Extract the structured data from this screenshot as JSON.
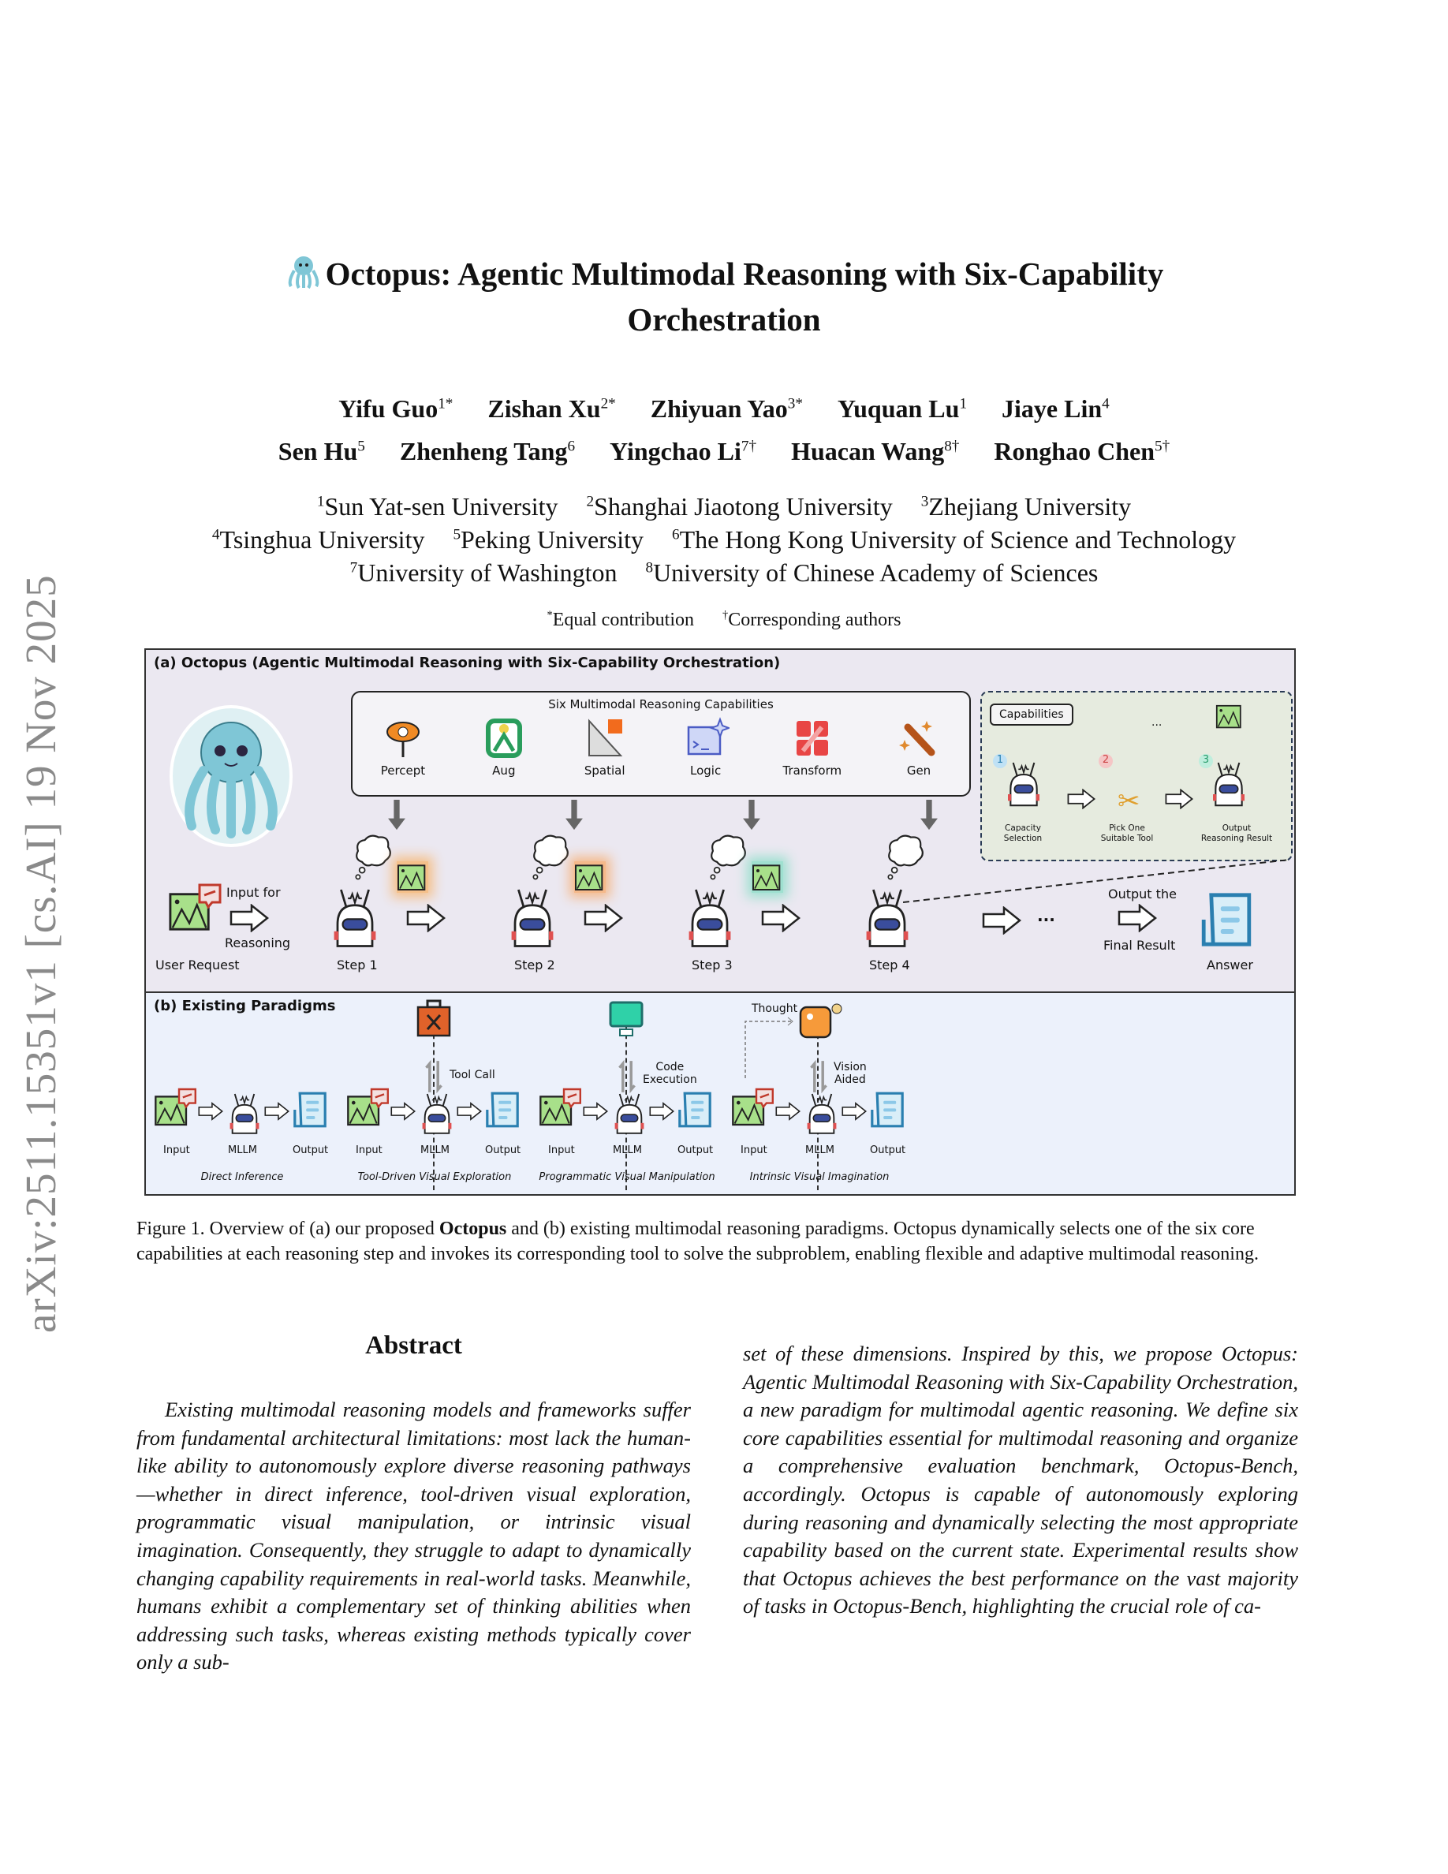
{
  "sidebar": {
    "arxiv_id": "arXiv:2511.15351v1  [cs.AI]  19 Nov 2025"
  },
  "title": {
    "line1": "Octopus: Agentic Multimodal Reasoning with Six-Capability",
    "line2": "Orchestration"
  },
  "authors": {
    "row1": [
      {
        "name": "Yifu Guo",
        "sup": "1*"
      },
      {
        "name": "Zishan Xu",
        "sup": "2*"
      },
      {
        "name": "Zhiyuan Yao",
        "sup": "3*"
      },
      {
        "name": "Yuquan Lu",
        "sup": "1"
      },
      {
        "name": "Jiaye Lin",
        "sup": "4"
      }
    ],
    "row2": [
      {
        "name": "Sen Hu",
        "sup": "5"
      },
      {
        "name": "Zhenheng Tang",
        "sup": "6"
      },
      {
        "name": "Yingchao Li",
        "sup": "7†"
      },
      {
        "name": "Huacan Wang",
        "sup": "8†"
      },
      {
        "name": "Ronghao Chen",
        "sup": "5†"
      }
    ]
  },
  "affiliations": {
    "row1": [
      {
        "sup": "1",
        "name": "Sun Yat-sen University"
      },
      {
        "sup": "2",
        "name": "Shanghai Jiaotong University"
      },
      {
        "sup": "3",
        "name": "Zhejiang University"
      }
    ],
    "row2": [
      {
        "sup": "4",
        "name": "Tsinghua University"
      },
      {
        "sup": "5",
        "name": "Peking University"
      },
      {
        "sup": "6",
        "name": "The Hong Kong University of Science and Technology"
      }
    ],
    "row3": [
      {
        "sup": "7",
        "name": "University of Washington"
      },
      {
        "sup": "8",
        "name": "University of Chinese Academy of Sciences"
      }
    ]
  },
  "notes": {
    "equal_sup": "*",
    "equal": "Equal contribution",
    "corr_sup": "†",
    "corr": "Corresponding authors"
  },
  "figure": {
    "a_title": "(a) Octopus (Agentic Multimodal Reasoning with Six-Capability Orchestration)",
    "caps_title": "Six Multimodal Reasoning Capabilities",
    "capabilities": [
      {
        "label": "Percept",
        "color": "#f08a24"
      },
      {
        "label": "Aug",
        "color": "#2a9d5c"
      },
      {
        "label": "Spatial",
        "color": "#888888"
      },
      {
        "label": "Logic",
        "color": "#4a5bc4"
      },
      {
        "label": "Transform",
        "color": "#e84545"
      },
      {
        "label": "Gen",
        "color": "#b5531a"
      }
    ],
    "user_request": "User Request",
    "input_for": "Input for",
    "reasoning": "Reasoning",
    "steps": [
      "Step 1",
      "Step 2",
      "Step 3",
      "Step 4"
    ],
    "ellipsis": "...",
    "output_the": "Output the",
    "final_result": "Final Result",
    "answer": "Answer",
    "zoom": {
      "capabilities": "Capabilities",
      "nums": [
        "1",
        "2",
        "3"
      ],
      "more": "...",
      "labels": [
        [
          "Capacity",
          "Selection"
        ],
        [
          "Pick One",
          "Suitable Tool"
        ],
        [
          "Output",
          "Reasoning Result"
        ]
      ]
    },
    "b_title": "(b) Existing Paradigms",
    "io": {
      "input": "Input",
      "mllm": "MLLM",
      "output": "Output"
    },
    "paradigms": [
      "Direct Inference",
      "Tool-Driven Visual Exploration",
      "Programmatic Visual Manipulation",
      "Intrinsic Visual Imagination"
    ],
    "tool_call": "Tool Call",
    "code": "Code",
    "execution": "Execution",
    "thought": "Thought",
    "vision": "Vision",
    "aided": "Aided"
  },
  "caption": {
    "prefix": "Figure 1.  Overview of (a) our proposed ",
    "bold": "Octopus",
    "rest": " and (b) existing multimodal reasoning paradigms. Octopus dynamically selects one of the six core capabilities at each reasoning step and invokes its corresponding tool to solve the subproblem, enabling flexible and adaptive multimodal reasoning."
  },
  "abstract": {
    "heading": "Abstract",
    "col1": "Existing multimodal reasoning models and frameworks suffer from fundamental architectural limitations: most lack the human-like ability to autonomously explore diverse reasoning pathways—whether in direct inference, tool-driven visual exploration, programmatic visual manipulation, or intrinsic visual imagination. Consequently, they struggle to adapt to dynamically changing capability requirements in real-world tasks. Meanwhile, humans exhibit a complementary set of thinking abilities when addressing such tasks, whereas existing methods typically cover only a sub-",
    "col2": "set of these dimensions. Inspired by this, we propose Octopus: Agentic Multimodal Reasoning with Six-Capability Orchestration, a new paradigm for multimodal agentic reasoning. We define six core capabilities essential for multimodal reasoning and organize a comprehensive evaluation benchmark, Octopus-Bench, accordingly. Octopus is capable of autonomously exploring during reasoning and dynamically selecting the most appropriate capability based on the current state. Experimental results show that Octopus achieves the best performance on the vast majority of tasks in Octopus-Bench, highlighting the crucial role of ca-"
  }
}
